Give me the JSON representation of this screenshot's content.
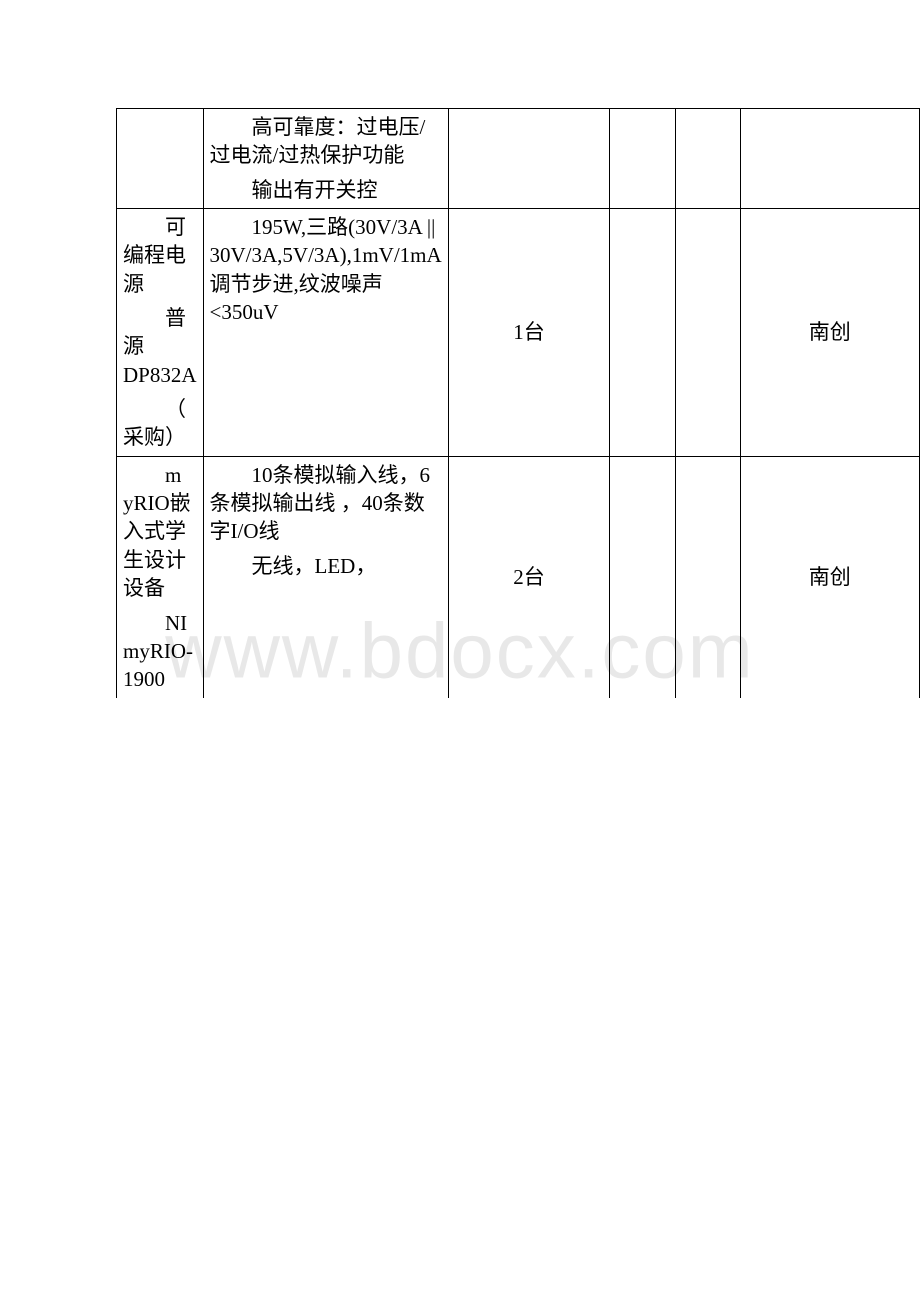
{
  "watermark": "www.bdocx.com",
  "table": {
    "border_color": "#000000",
    "background_color": "#ffffff",
    "text_color": "#000000",
    "font_size": 21,
    "rows": [
      {
        "col1": "",
        "col2_para1_indent": "高",
        "col2_para1_rest": "可靠度：过电压/过电流/过热保护功能",
        "col2_para2_indent": "输",
        "col2_para2_rest": "出有开关控",
        "col3": "",
        "col4": "",
        "col5": "",
        "col6": ""
      },
      {
        "col1_para1_indent": "可",
        "col1_para1_rest": "编程电源",
        "col1_para2_indent": "普",
        "col1_para2_rest": "源DP832A",
        "col1_para3_indent": "（",
        "col1_para3_rest": "采购）",
        "col2_indent": "1",
        "col2_rest": "95W,三路(30V/3A || 30V/3A,5V/3A),1mV/1mA调节步进,纹波噪声<350uV",
        "col3": "1台",
        "col4": "",
        "col5": "",
        "col6": "南创"
      },
      {
        "col1_para1_indent": "m",
        "col1_para1_rest": "yRIO嵌入式学生设计设备",
        "col1_para2_indent": "N",
        "col1_para2_rest": "I myRIO-1900",
        "col2_para1_indent": "1",
        "col2_para1_rest": "0条模拟输入线，6条模拟输出线 ，40条数字I/O线",
        "col2_para2_indent": "无",
        "col2_para2_rest": "线，LED，",
        "col3": "2台",
        "col4": "",
        "col5": "",
        "col6": "南创"
      }
    ]
  }
}
